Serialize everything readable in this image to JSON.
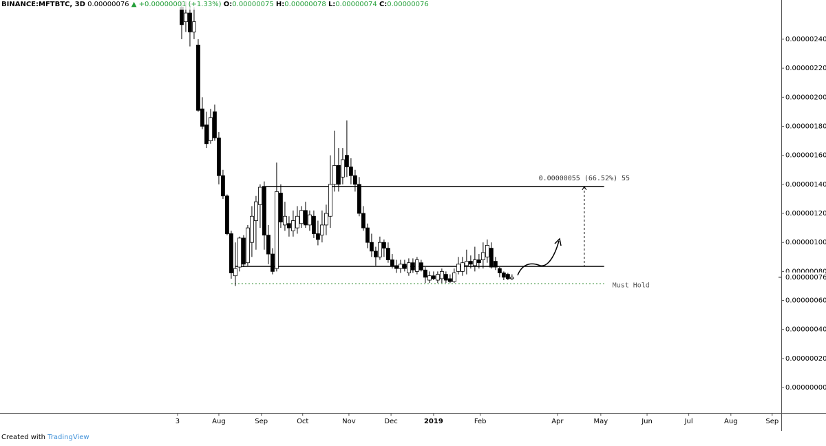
{
  "header": {
    "symbol": "BINANCE:MFTBTC, 3D",
    "last": "0.00000076",
    "change": "+0.00000001 (+1.33%)",
    "open_label": "O:",
    "open": "0.00000075",
    "high_label": "H:",
    "high": "0.00000078",
    "low_label": "L:",
    "low": "0.00000074",
    "close_label": "C:",
    "close": "0.00000076"
  },
  "chart_data": {
    "type": "candlestick",
    "up_color": "#ffffff",
    "down_color": "#000000",
    "grid": false,
    "open": [
      2.62e-06,
      2.52e-06,
      2.58e-06,
      2.45e-06,
      2.36e-06,
      1.92e-06,
      1.81e-06,
      1.7e-06,
      1.9e-06,
      1.72e-06,
      1.46e-06,
      1.32e-06,
      1.06e-06,
      7.7e-07,
      8.3e-07,
      1.03e-06,
      8.6e-07,
      1e-06,
      1.15e-06,
      1.26e-06,
      1.38e-06,
      1.05e-06,
      9.2e-07,
      8.2e-07,
      1.34e-06,
      1.12e-06,
      1.13e-06,
      1.08e-06,
      1.1e-06,
      1.13e-06,
      1.22e-06,
      1.12e-06,
      1.18e-06,
      1.06e-06,
      1.05e-06,
      1.12e-06,
      1.18e-06,
      1.4e-06,
      1.53e-06,
      1.45e-06,
      1.6e-06,
      1.52e-06,
      1.46e-06,
      1.4e-06,
      1.2e-06,
      1.1e-06,
      1e-06,
      9.4e-07,
      9e-07,
      1e-06,
      9.6e-07,
      8.8e-07,
      8.4e-07,
      8.2e-07,
      8.5e-07,
      7.9e-07,
      8.6e-07,
      8e-07,
      8.6e-07,
      8.1e-07,
      7.4e-07,
      7.7e-07,
      7.4e-07,
      7.5e-07,
      7.8e-07,
      7.5e-07,
      7.3e-07,
      8e-07,
      8e-07,
      8.4e-07,
      8.7e-07,
      8.4e-07,
      8.8e-07,
      8.8e-07,
      9e-07,
      9.6e-07,
      8.7e-07,
      8.2e-07,
      7.9e-07,
      7.8e-07,
      7.5e-07
    ],
    "high": [
      2.66e-06,
      2.66e-06,
      2.65e-06,
      2.62e-06,
      2.4e-06,
      2e-06,
      1.9e-06,
      1.92e-06,
      1.95e-06,
      1.76e-06,
      1.5e-06,
      1.33e-06,
      1.08e-06,
      1e-06,
      1.04e-06,
      1.05e-06,
      1.12e-06,
      1.25e-06,
      1.32e-06,
      1.4e-06,
      1.42e-06,
      1.12e-06,
      9.6e-07,
      1.55e-06,
      1.4e-06,
      1.28e-06,
      1.18e-06,
      1.22e-06,
      1.25e-06,
      1.25e-06,
      1.28e-06,
      1.22e-06,
      1.22e-06,
      1.15e-06,
      1.22e-06,
      1.26e-06,
      1.6e-06,
      1.77e-06,
      1.65e-06,
      1.65e-06,
      1.84e-06,
      1.58e-06,
      1.5e-06,
      1.45e-06,
      1.25e-06,
      1.13e-06,
      1.06e-06,
      9.7e-07,
      1.04e-06,
      1.02e-06,
      1e-06,
      9.2e-07,
      8.8e-07,
      8.8e-07,
      8.8e-07,
      8.9e-07,
      8.9e-07,
      9e-07,
      8.8e-07,
      8.3e-07,
      8e-07,
      8e-07,
      8e-07,
      8.2e-07,
      8e-07,
      7.8e-07,
      8.2e-07,
      9e-07,
      9e-07,
      9.5e-07,
      9.1e-07,
      9.7e-07,
      9.2e-07,
      1e-06,
      1.02e-06,
      1e-06,
      9e-07,
      8.3e-07,
      8e-07,
      7.9e-07,
      7.8e-07
    ],
    "low": [
      2.4e-06,
      2.45e-06,
      2.35e-06,
      2.4e-06,
      1.9e-06,
      1.78e-06,
      1.65e-06,
      1.68e-06,
      1.7e-06,
      1.4e-06,
      1.3e-06,
      1.05e-06,
      7.5e-07,
      7e-07,
      8e-07,
      8.3e-07,
      8.4e-07,
      9e-07,
      9.5e-07,
      1.1e-06,
      9.5e-07,
      8.5e-07,
      7.8e-07,
      8e-07,
      1.1e-06,
      1.08e-06,
      1.04e-06,
      1.04e-06,
      1.06e-06,
      1.1e-06,
      1.1e-06,
      1.08e-06,
      1.03e-06,
      9.8e-07,
      1e-06,
      1.05e-06,
      1.1e-06,
      1.35e-06,
      1.35e-06,
      1.4e-06,
      1.45e-06,
      1.4e-06,
      1.35e-06,
      1.18e-06,
      1.08e-06,
      9.6e-07,
      9e-07,
      8.4e-07,
      8.8e-07,
      9e-07,
      8.6e-07,
      8.2e-07,
      7.9e-07,
      7.9e-07,
      8e-07,
      7.7e-07,
      7.9e-07,
      7.8e-07,
      8e-07,
      7.2e-07,
      7.2e-07,
      7.4e-07,
      7.2e-07,
      7.2e-07,
      7.2e-07,
      7.2e-07,
      7.2e-07,
      7.8e-07,
      7.7e-07,
      7.8e-07,
      8.2e-07,
      8e-07,
      8.2e-07,
      8.2e-07,
      8.6e-07,
      8.2e-07,
      8.1e-07,
      7.6e-07,
      7.4e-07,
      7.4e-07,
      7.4e-07
    ],
    "close": [
      2.5e-06,
      2.58e-06,
      2.45e-06,
      2.52e-06,
      1.91e-06,
      1.8e-06,
      1.68e-06,
      1.86e-06,
      1.72e-06,
      1.46e-06,
      1.32e-06,
      1.06e-06,
      7.9e-07,
      8.2e-07,
      1.03e-06,
      8.5e-07,
      1.1e-06,
      1.18e-06,
      1.28e-06,
      1.38e-06,
      1.05e-06,
      9.2e-07,
      8e-07,
      1.35e-06,
      1.14e-06,
      1.18e-06,
      1.1e-06,
      1.15e-06,
      1.18e-06,
      1.22e-06,
      1.12e-06,
      1.19e-06,
      1.06e-06,
      1.02e-06,
      1.12e-06,
      1.2e-06,
      1.4e-06,
      1.53e-06,
      1.4e-06,
      1.57e-06,
      1.52e-06,
      1.46e-06,
      1.4e-06,
      1.2e-06,
      1.1e-06,
      1e-06,
      9.4e-07,
      9e-07,
      1e-06,
      9.6e-07,
      8.8e-07,
      8.4e-07,
      8.2e-07,
      8.5e-07,
      8.2e-07,
      8.6e-07,
      8.1e-07,
      8.8e-07,
      8.1e-07,
      7.6e-07,
      7.7e-07,
      7.5e-07,
      7.8e-07,
      8e-07,
      7.4e-07,
      7.3e-07,
      7.9e-07,
      8.5e-07,
      8.6e-07,
      8.7e-07,
      8.5e-07,
      8.8e-07,
      8.6e-07,
      9.3e-07,
      9.8e-07,
      8.3e-07,
      8.3e-07,
      7.9e-07,
      7.6e-07,
      7.5e-07,
      7.6e-07
    ],
    "ylim": [
      -1.75e-07,
      2.67e-06
    ],
    "yticks": [
      {
        "value": 0,
        "label": "0.00000000"
      },
      {
        "value": 2e-07,
        "label": "0.00000020"
      },
      {
        "value": 4e-07,
        "label": "0.00000040"
      },
      {
        "value": 6e-07,
        "label": "0.00000060"
      },
      {
        "value": 8e-07,
        "label": "0.00000080"
      },
      {
        "value": 1e-06,
        "label": "0.00000100"
      },
      {
        "value": 1.2e-06,
        "label": "0.00000120"
      },
      {
        "value": 1.4e-06,
        "label": "0.00000140"
      },
      {
        "value": 1.6e-06,
        "label": "0.00000160"
      },
      {
        "value": 1.8e-06,
        "label": "0.00000180"
      },
      {
        "value": 2e-06,
        "label": "0.00000200"
      },
      {
        "value": 2.2e-06,
        "label": "0.00000220"
      },
      {
        "value": 2.4e-06,
        "label": "0.00000240"
      }
    ],
    "xlim": [
      -44,
      145.2
    ],
    "xticks": [
      {
        "value": -1,
        "label": "3"
      },
      {
        "value": 9,
        "label": "Aug"
      },
      {
        "value": 19.3,
        "label": "Sep"
      },
      {
        "value": 29.3,
        "label": "Oct"
      },
      {
        "value": 40.5,
        "label": "Nov"
      },
      {
        "value": 50.7,
        "label": "Dec"
      },
      {
        "value": 61,
        "label": "2019"
      },
      {
        "value": 72.3,
        "label": "Feb"
      },
      {
        "value": 91,
        "label": "Apr"
      },
      {
        "value": 101.5,
        "label": "May"
      },
      {
        "value": 112.7,
        "label": "Jun"
      },
      {
        "value": 122.8,
        "label": "Jul"
      },
      {
        "value": 133,
        "label": "Aug"
      },
      {
        "value": 143,
        "label": "Sep"
      }
    ],
    "last_price": {
      "value": 7.6e-07,
      "label": "0.00000076"
    },
    "resistance": 1.385e-06,
    "support": 8.35e-07,
    "must_hold": {
      "value": 7.15e-07,
      "label": "Must Hold"
    },
    "measure_label": "0.00000055 (66.52%) 55"
  },
  "footer": {
    "created": "Created with",
    "brand": "TradingView"
  }
}
